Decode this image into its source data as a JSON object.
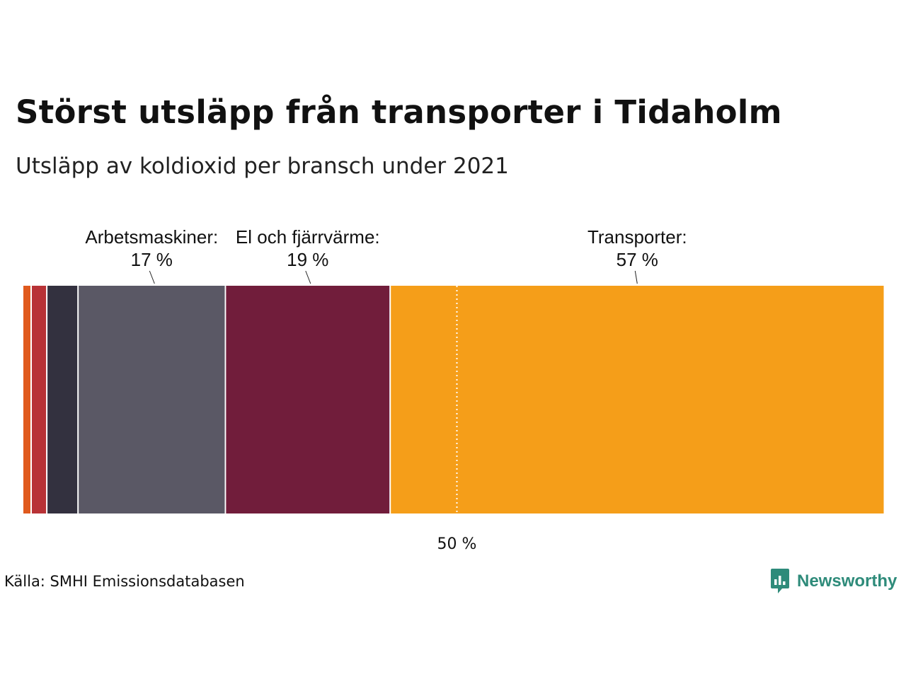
{
  "header": {
    "title": "Störst utsläpp från transporter i Tidaholm",
    "subtitle": "Utsläpp av koldioxid per bransch under 2021"
  },
  "footer": {
    "source": "Källa: SMHI Emissionsdatabasen",
    "brand_name": "Newsworthy",
    "brand_icon": "chart-speech-bubble-icon",
    "brand_color": "#2e8b7a"
  },
  "chart_data": {
    "type": "bar",
    "orientation": "horizontal-stacked",
    "unit": "%",
    "xlim": [
      0,
      100
    ],
    "grid": false,
    "legend": "none",
    "segments": [
      {
        "name": "",
        "value": 0.9,
        "color": "#e05a1e",
        "label": ""
      },
      {
        "name": "",
        "value": 1.8,
        "color": "#b83236",
        "label": ""
      },
      {
        "name": "",
        "value": 3.6,
        "color": "#33313f",
        "label": ""
      },
      {
        "name": "Arbetsmaskiner:",
        "value": 17,
        "color": "#5a5865",
        "label": "17 %"
      },
      {
        "name": "El och fjärrvärme:",
        "value": 19,
        "color": "#711d3b",
        "label": "19 %"
      },
      {
        "name": "Transporter:",
        "value": 57,
        "color": "#f59e19",
        "label": "57 %"
      }
    ],
    "reference_line": {
      "value": 50,
      "label": "50 %",
      "style": "dotted",
      "color": "#ffffff"
    }
  }
}
